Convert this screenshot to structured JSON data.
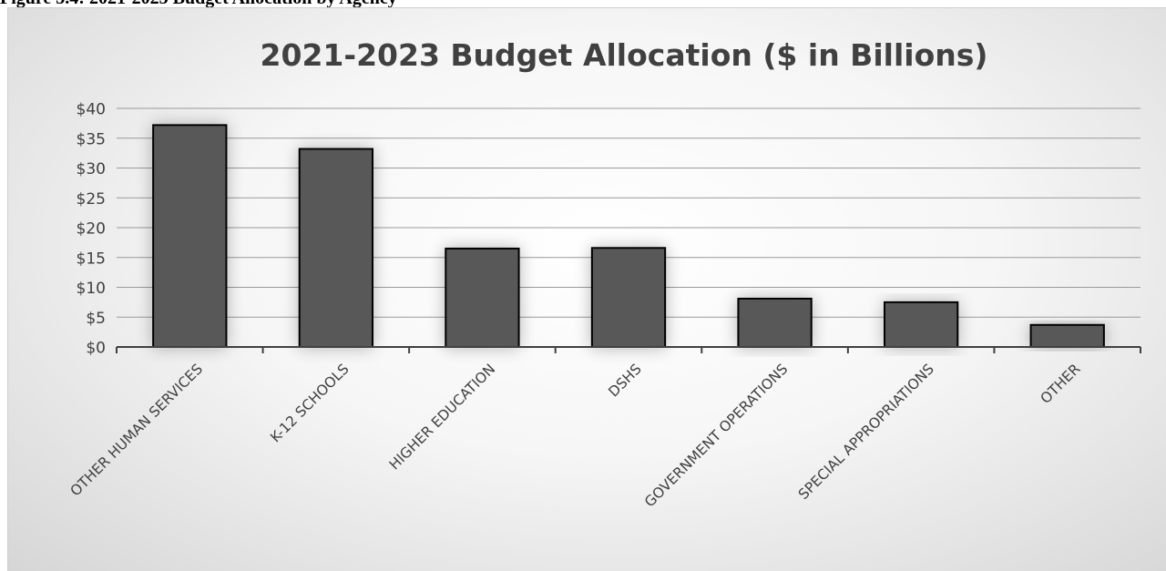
{
  "figure_caption": "Figure 3.4: 2021-2023 Budget Allocation by Agency",
  "chart_data": {
    "type": "bar",
    "title": "2021-2023 Budget Allocation ($ in Billions)",
    "xlabel": "",
    "ylabel": "",
    "categories": [
      "OTHER HUMAN SERVICES",
      "K-12 SCHOOLS",
      "HIGHER EDUCATION",
      "DSHS",
      "GOVERNMENT OPERATIONS",
      "SPECIAL APPROPRIATIONS",
      "OTHER"
    ],
    "values": [
      37.2,
      33.2,
      16.5,
      16.6,
      8.1,
      7.5,
      3.7
    ],
    "ylim": [
      0,
      40
    ],
    "yticks": [
      "$0",
      "$5",
      "$10",
      "$15",
      "$20",
      "$25",
      "$30",
      "$35",
      "$40"
    ],
    "grid": true,
    "legend": "none",
    "bar_color": "#595959",
    "bar_outline": "#000000"
  }
}
